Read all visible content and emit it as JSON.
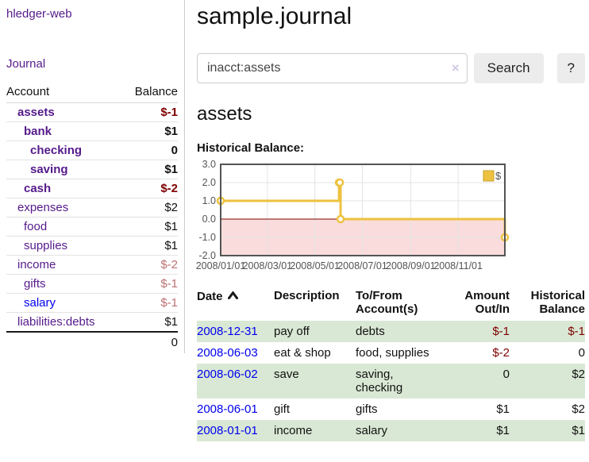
{
  "brand": "hledger-web",
  "nav": {
    "journal": "Journal"
  },
  "sidebar": {
    "header": {
      "account": "Account",
      "balance": "Balance"
    },
    "accounts": [
      {
        "name": "assets",
        "balance": "$-1",
        "depth": 1,
        "active": true,
        "balance_style": "negative",
        "link_style": "purple"
      },
      {
        "name": "bank",
        "balance": "$1",
        "depth": 2,
        "active": true,
        "balance_style": "normal",
        "link_style": "purple"
      },
      {
        "name": "checking",
        "balance": "0",
        "depth": 3,
        "active": true,
        "balance_style": "normal",
        "link_style": "purple"
      },
      {
        "name": "saving",
        "balance": "$1",
        "depth": 3,
        "active": true,
        "balance_style": "normal",
        "link_style": "purple"
      },
      {
        "name": "cash",
        "balance": "$-2",
        "depth": 2,
        "active": true,
        "balance_style": "negative",
        "link_style": "purple"
      },
      {
        "name": "expenses",
        "balance": "$2",
        "depth": 1,
        "active": false,
        "balance_style": "normal",
        "link_style": "purple"
      },
      {
        "name": "food",
        "balance": "$1",
        "depth": 2,
        "active": false,
        "balance_style": "normal",
        "link_style": "purple"
      },
      {
        "name": "supplies",
        "balance": "$1",
        "depth": 2,
        "active": false,
        "balance_style": "normal",
        "link_style": "purple"
      },
      {
        "name": "income",
        "balance": "$-2",
        "depth": 1,
        "active": false,
        "balance_style": "negative-soft",
        "link_style": "purple"
      },
      {
        "name": "gifts",
        "balance": "$-1",
        "depth": 2,
        "active": false,
        "balance_style": "negative-soft",
        "link_style": "purple"
      },
      {
        "name": "salary",
        "balance": "$-1",
        "depth": 2,
        "active": false,
        "balance_style": "negative-soft",
        "link_style": "blue"
      },
      {
        "name": "liabilities:debts",
        "balance": "$1",
        "depth": 1,
        "active": false,
        "balance_style": "normal",
        "link_style": "purple"
      }
    ],
    "total": "0"
  },
  "main": {
    "title": "sample.journal",
    "search": {
      "value": "inacct:assets",
      "clear_icon": "×",
      "search_button": "Search",
      "help_button": "?"
    },
    "account_heading": "assets",
    "chart_label": "Historical Balance:"
  },
  "chart_data": {
    "type": "line",
    "title": "Historical Balance",
    "series": [
      {
        "name": "$",
        "color": "#edc240",
        "style": "steps",
        "points": [
          [
            "2008-01-01",
            1.0
          ],
          [
            "2008-06-01",
            2.0
          ],
          [
            "2008-06-02",
            2.0
          ],
          [
            "2008-06-03",
            0.0
          ],
          [
            "2008-12-31",
            -1.0
          ]
        ]
      }
    ],
    "xlim": [
      "2008-01-01",
      "2008-12-31"
    ],
    "ylim": [
      -2.0,
      3.0
    ],
    "yticks": [
      3.0,
      2.0,
      1.0,
      0.0,
      -1.0,
      -2.0
    ],
    "xticks": [
      {
        "pos": "2008-01-01",
        "label": "2008/01/01"
      },
      {
        "pos": "2008-03-01",
        "label": "2008/03/01"
      },
      {
        "pos": "2008-05-01",
        "label": "2008/05/01"
      },
      {
        "pos": "2008-07-01",
        "label": "2008/07/01"
      },
      {
        "pos": "2008-09-01",
        "label": "2008/09/01"
      },
      {
        "pos": "2008-11-01",
        "label": "2008/11/01"
      }
    ],
    "grid": true,
    "legend_position": "top-right",
    "negative_region_fill": "#fadcdc",
    "zero_line_color": "#7e0000"
  },
  "register": {
    "columns": {
      "date": "Date",
      "description": "Description",
      "accounts": "To/From Account(s)",
      "amount": "Amount Out/In",
      "balance": "Historical Balance"
    },
    "rows": [
      {
        "date": "2008-12-31",
        "description": "pay off",
        "accounts": "debts",
        "amount": "$-1",
        "balance": "$-1"
      },
      {
        "date": "2008-06-03",
        "description": "eat & shop",
        "accounts": "food, supplies",
        "amount": "$-2",
        "balance": "0"
      },
      {
        "date": "2008-06-02",
        "description": "save",
        "accounts": "saving, checking",
        "amount": "0",
        "balance": "$2"
      },
      {
        "date": "2008-06-01",
        "description": "gift",
        "accounts": "gifts",
        "amount": "$1",
        "balance": "$2"
      },
      {
        "date": "2008-01-01",
        "description": "income",
        "accounts": "salary",
        "amount": "$1",
        "balance": "$1"
      }
    ]
  },
  "colors": {
    "link_purple": "#551a8b",
    "link_blue": "#0000ee",
    "negative": "#7e0000",
    "negative_soft": "#bb7072",
    "row_green": "#d9e8d4",
    "chart_gold": "#edc240",
    "chart_pink": "#fadcdc"
  }
}
